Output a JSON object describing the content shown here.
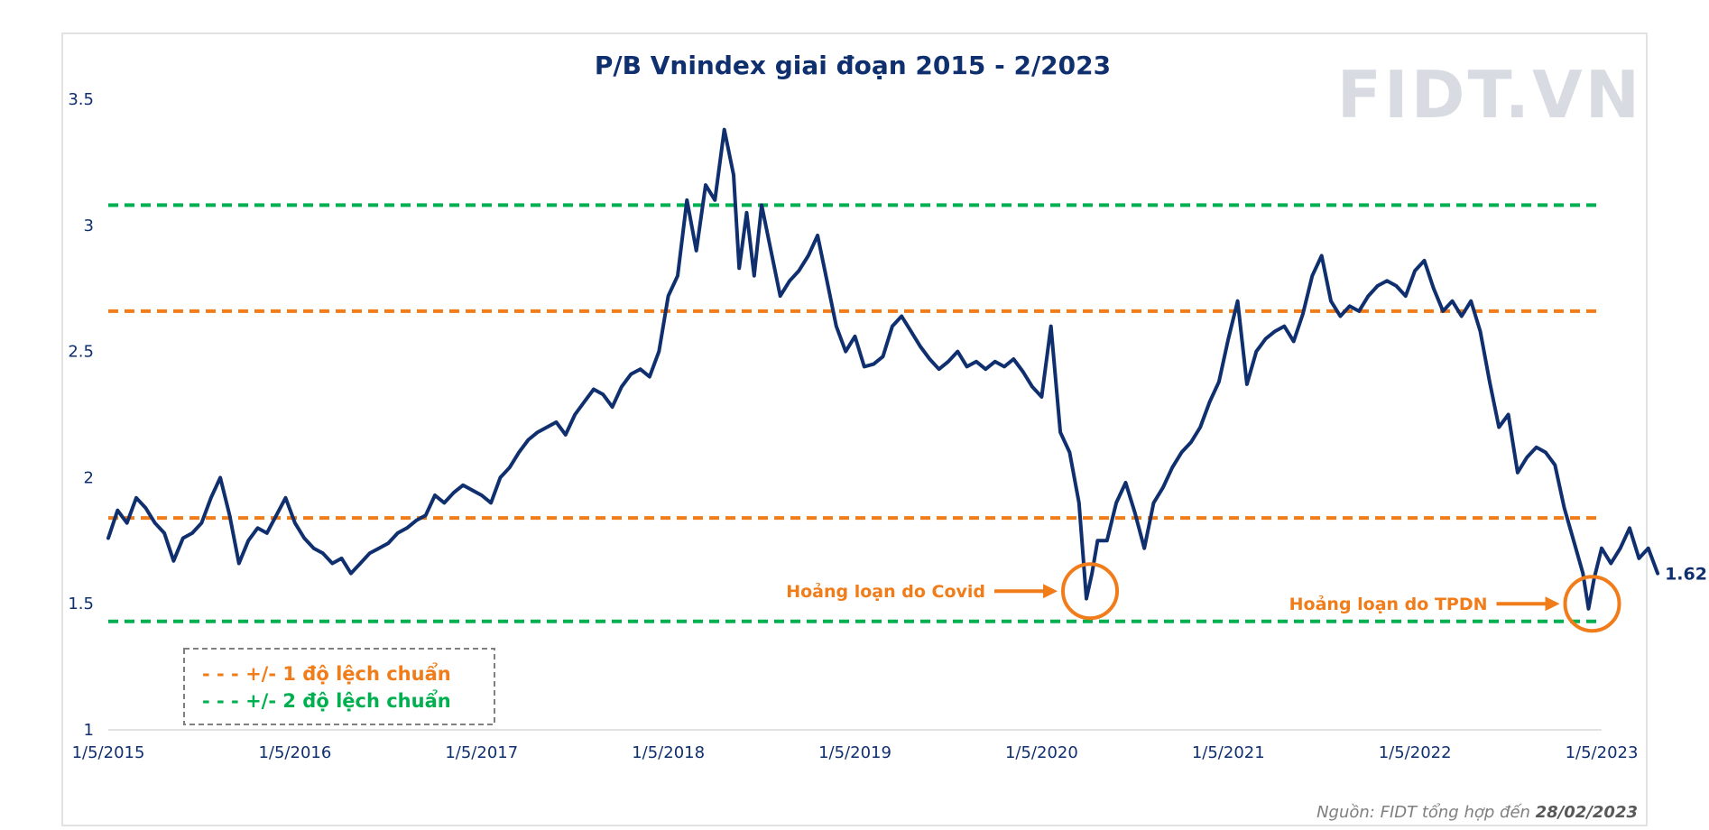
{
  "chart_data": {
    "type": "line",
    "title": "P/B Vnindex giai đoạn 2015 - 2/2023",
    "xlabel": "",
    "ylabel": "",
    "x_ticks": [
      "1/5/2015",
      "1/5/2016",
      "1/5/2017",
      "1/5/2018",
      "1/5/2019",
      "1/5/2020",
      "1/5/2021",
      "1/5/2022",
      "1/5/2023"
    ],
    "y_ticks": [
      "3.5",
      "3",
      "2.5",
      "2",
      "1.5",
      "1"
    ],
    "ylim": [
      1,
      3.5
    ],
    "xlim": [
      2015.0,
      2023.0
    ],
    "grid": false,
    "series": [
      {
        "name": "P/B Vnindex",
        "color": "#0f2f6e",
        "points": [
          [
            2015.0,
            1.76
          ],
          [
            2015.05,
            1.87
          ],
          [
            2015.1,
            1.82
          ],
          [
            2015.15,
            1.92
          ],
          [
            2015.2,
            1.88
          ],
          [
            2015.25,
            1.82
          ],
          [
            2015.3,
            1.78
          ],
          [
            2015.35,
            1.67
          ],
          [
            2015.4,
            1.76
          ],
          [
            2015.45,
            1.78
          ],
          [
            2015.5,
            1.82
          ],
          [
            2015.55,
            1.92
          ],
          [
            2015.6,
            2.0
          ],
          [
            2015.65,
            1.85
          ],
          [
            2015.7,
            1.66
          ],
          [
            2015.75,
            1.75
          ],
          [
            2015.8,
            1.8
          ],
          [
            2015.85,
            1.78
          ],
          [
            2015.9,
            1.85
          ],
          [
            2015.95,
            1.92
          ],
          [
            2016.0,
            1.82
          ],
          [
            2016.05,
            1.76
          ],
          [
            2016.1,
            1.72
          ],
          [
            2016.15,
            1.7
          ],
          [
            2016.2,
            1.66
          ],
          [
            2016.25,
            1.68
          ],
          [
            2016.3,
            1.62
          ],
          [
            2016.35,
            1.66
          ],
          [
            2016.4,
            1.7
          ],
          [
            2016.45,
            1.72
          ],
          [
            2016.5,
            1.74
          ],
          [
            2016.55,
            1.78
          ],
          [
            2016.6,
            1.8
          ],
          [
            2016.65,
            1.83
          ],
          [
            2016.7,
            1.85
          ],
          [
            2016.75,
            1.93
          ],
          [
            2016.8,
            1.9
          ],
          [
            2016.85,
            1.94
          ],
          [
            2016.9,
            1.97
          ],
          [
            2016.95,
            1.95
          ],
          [
            2017.0,
            1.93
          ],
          [
            2017.05,
            1.9
          ],
          [
            2017.1,
            2.0
          ],
          [
            2017.15,
            2.04
          ],
          [
            2017.2,
            2.1
          ],
          [
            2017.25,
            2.15
          ],
          [
            2017.3,
            2.18
          ],
          [
            2017.35,
            2.2
          ],
          [
            2017.4,
            2.22
          ],
          [
            2017.45,
            2.17
          ],
          [
            2017.5,
            2.25
          ],
          [
            2017.55,
            2.3
          ],
          [
            2017.6,
            2.35
          ],
          [
            2017.65,
            2.33
          ],
          [
            2017.7,
            2.28
          ],
          [
            2017.75,
            2.36
          ],
          [
            2017.8,
            2.41
          ],
          [
            2017.85,
            2.43
          ],
          [
            2017.9,
            2.4
          ],
          [
            2017.95,
            2.5
          ],
          [
            2018.0,
            2.72
          ],
          [
            2018.05,
            2.8
          ],
          [
            2018.1,
            3.1
          ],
          [
            2018.15,
            2.9
          ],
          [
            2018.2,
            3.16
          ],
          [
            2018.25,
            3.1
          ],
          [
            2018.3,
            3.38
          ],
          [
            2018.35,
            3.2
          ],
          [
            2018.38,
            2.83
          ],
          [
            2018.42,
            3.05
          ],
          [
            2018.46,
            2.8
          ],
          [
            2018.5,
            3.08
          ],
          [
            2018.55,
            2.9
          ],
          [
            2018.6,
            2.72
          ],
          [
            2018.65,
            2.78
          ],
          [
            2018.7,
            2.82
          ],
          [
            2018.75,
            2.88
          ],
          [
            2018.8,
            2.96
          ],
          [
            2018.85,
            2.78
          ],
          [
            2018.9,
            2.6
          ],
          [
            2018.95,
            2.5
          ],
          [
            2019.0,
            2.56
          ],
          [
            2019.05,
            2.44
          ],
          [
            2019.1,
            2.45
          ],
          [
            2019.15,
            2.48
          ],
          [
            2019.2,
            2.6
          ],
          [
            2019.25,
            2.64
          ],
          [
            2019.3,
            2.58
          ],
          [
            2019.35,
            2.52
          ],
          [
            2019.4,
            2.47
          ],
          [
            2019.45,
            2.43
          ],
          [
            2019.5,
            2.46
          ],
          [
            2019.55,
            2.5
          ],
          [
            2019.6,
            2.44
          ],
          [
            2019.65,
            2.46
          ],
          [
            2019.7,
            2.43
          ],
          [
            2019.75,
            2.46
          ],
          [
            2019.8,
            2.44
          ],
          [
            2019.85,
            2.47
          ],
          [
            2019.9,
            2.42
          ],
          [
            2019.95,
            2.36
          ],
          [
            2020.0,
            2.32
          ],
          [
            2020.05,
            2.6
          ],
          [
            2020.1,
            2.18
          ],
          [
            2020.15,
            2.1
          ],
          [
            2020.2,
            1.9
          ],
          [
            2020.24,
            1.52
          ],
          [
            2020.27,
            1.62
          ],
          [
            2020.3,
            1.75
          ],
          [
            2020.35,
            1.75
          ],
          [
            2020.4,
            1.9
          ],
          [
            2020.45,
            1.98
          ],
          [
            2020.5,
            1.86
          ],
          [
            2020.55,
            1.72
          ],
          [
            2020.6,
            1.9
          ],
          [
            2020.65,
            1.96
          ],
          [
            2020.7,
            2.04
          ],
          [
            2020.75,
            2.1
          ],
          [
            2020.8,
            2.14
          ],
          [
            2020.85,
            2.2
          ],
          [
            2020.9,
            2.3
          ],
          [
            2020.95,
            2.38
          ],
          [
            2021.0,
            2.55
          ],
          [
            2021.05,
            2.7
          ],
          [
            2021.1,
            2.37
          ],
          [
            2021.15,
            2.5
          ],
          [
            2021.2,
            2.55
          ],
          [
            2021.25,
            2.58
          ],
          [
            2021.3,
            2.6
          ],
          [
            2021.35,
            2.54
          ],
          [
            2021.4,
            2.65
          ],
          [
            2021.45,
            2.8
          ],
          [
            2021.5,
            2.88
          ],
          [
            2021.55,
            2.7
          ],
          [
            2021.6,
            2.64
          ],
          [
            2021.65,
            2.68
          ],
          [
            2021.7,
            2.66
          ],
          [
            2021.75,
            2.72
          ],
          [
            2021.8,
            2.76
          ],
          [
            2021.85,
            2.78
          ],
          [
            2021.9,
            2.76
          ],
          [
            2021.95,
            2.72
          ],
          [
            2022.0,
            2.82
          ],
          [
            2022.05,
            2.86
          ],
          [
            2022.1,
            2.75
          ],
          [
            2022.15,
            2.66
          ],
          [
            2022.2,
            2.7
          ],
          [
            2022.25,
            2.64
          ],
          [
            2022.3,
            2.7
          ],
          [
            2022.35,
            2.58
          ],
          [
            2022.4,
            2.38
          ],
          [
            2022.45,
            2.2
          ],
          [
            2022.5,
            2.25
          ],
          [
            2022.55,
            2.02
          ],
          [
            2022.6,
            2.08
          ],
          [
            2022.65,
            2.12
          ],
          [
            2022.7,
            2.1
          ],
          [
            2022.75,
            2.05
          ],
          [
            2022.8,
            1.88
          ],
          [
            2022.85,
            1.75
          ],
          [
            2022.9,
            1.62
          ],
          [
            2022.93,
            1.48
          ],
          [
            2022.96,
            1.6
          ],
          [
            2023.0,
            1.72
          ],
          [
            2023.05,
            1.66
          ],
          [
            2023.1,
            1.72
          ],
          [
            2023.15,
            1.8
          ],
          [
            2023.2,
            1.68
          ],
          [
            2023.25,
            1.72
          ],
          [
            2023.3,
            1.62
          ]
        ]
      }
    ],
    "reference_lines": [
      {
        "value": 3.08,
        "color": "#00b050",
        "kind": "+2 SD"
      },
      {
        "value": 2.66,
        "color": "#f07c1a",
        "kind": "+1 SD"
      },
      {
        "value": 1.84,
        "color": "#f07c1a",
        "kind": "-1 SD"
      },
      {
        "value": 1.43,
        "color": "#00b050",
        "kind": "-2 SD"
      }
    ],
    "end_label": "1.62",
    "annotations": [
      {
        "text": "Hoảng loạn do Covid",
        "x": 2020.24,
        "y": 1.55
      },
      {
        "text": "Hoảng loạn do TPDN",
        "x": 2022.93,
        "y": 1.5
      }
    ],
    "legend": {
      "placement": "bottom-left",
      "items": [
        {
          "text": "- - - +/- 1 độ lệch chuẩn",
          "color": "#f07c1a"
        },
        {
          "text": "- - - +/- 2 độ lệch chuẩn",
          "color": "#00b050"
        }
      ]
    },
    "watermark": "FIDT.VN",
    "source_prefix": "Nguồn: FIDT tổng hợp đến ",
    "source_date": "28/02/2023"
  }
}
